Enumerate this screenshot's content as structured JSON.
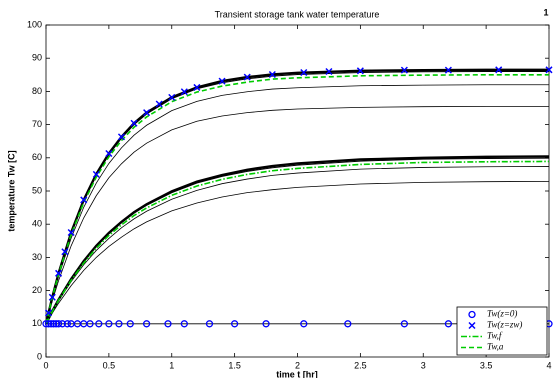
{
  "chart_data": {
    "type": "line",
    "title": "Transient storage tank water temperature",
    "annotation": "1",
    "xlabel": "time t [hr]",
    "ylabel": "temperature Tw [C]",
    "xlim": [
      0,
      4
    ],
    "ylim": [
      0,
      100
    ],
    "xticks": [
      0,
      0.5,
      1,
      1.5,
      2,
      2.5,
      3,
      3.5,
      4
    ],
    "yticks": [
      0,
      10,
      20,
      30,
      40,
      50,
      60,
      70,
      80,
      90,
      100
    ],
    "grid": false,
    "legend": "lower right",
    "x": [
      0,
      0.05,
      0.1,
      0.2,
      0.3,
      0.4,
      0.5,
      0.6,
      0.7,
      0.8,
      1,
      1.2,
      1.4,
      1.6,
      1.8,
      2,
      2.5,
      3,
      3.5,
      4
    ],
    "series": [
      {
        "name": "Tw(z=0)",
        "color": "#0000ff",
        "marker": "o",
        "line_color": "#000000",
        "x": [
          0,
          0.02,
          0.04,
          0.06,
          0.08,
          0.1,
          0.13,
          0.17,
          0.2,
          0.25,
          0.3,
          0.35,
          0.42,
          0.5,
          0.58,
          0.67,
          0.8,
          0.97,
          1.1,
          1.3,
          1.5,
          1.75,
          2.05,
          2.4,
          2.85,
          3.2,
          3.6,
          4
        ],
        "values": [
          10,
          10,
          10,
          10,
          10,
          10,
          10,
          10,
          10,
          10,
          10,
          10,
          10,
          10,
          10,
          10,
          10,
          10,
          10,
          10,
          10,
          10,
          10,
          10,
          10,
          10,
          10,
          10
        ]
      },
      {
        "name": "Tw(z=zw)",
        "color": "#0000ff",
        "marker": "x",
        "x": [
          0.02,
          0.05,
          0.1,
          0.15,
          0.2,
          0.3,
          0.4,
          0.5,
          0.6,
          0.7,
          0.8,
          0.9,
          1,
          1.1,
          1.2,
          1.4,
          1.6,
          1.8,
          2.05,
          2.25,
          2.5,
          2.85,
          3.2,
          3.6,
          4
        ],
        "values": [
          13.3,
          18.0,
          25.2,
          31.7,
          37.5,
          47.3,
          55.0,
          61.3,
          66.3,
          70.4,
          73.6,
          76.2,
          78.2,
          79.9,
          81.2,
          83.1,
          84.3,
          85.1,
          85.7,
          86.0,
          86.2,
          86.4,
          86.4,
          86.5,
          86.5
        ]
      },
      {
        "name": "Tw,f",
        "color": "#00cc00",
        "dash": "dashdot",
        "values": [
          10,
          13.7,
          17.1,
          23.1,
          28.3,
          32.8,
          36.6,
          39.8,
          42.6,
          44.9,
          48.7,
          51.5,
          53.5,
          55.0,
          56.1,
          56.8,
          58.0,
          58.6,
          58.8,
          58.9
        ]
      },
      {
        "name": "Tw,a",
        "color": "#00cc00",
        "dash": "dashed",
        "values": [
          10,
          17.9,
          24.9,
          36.9,
          46.5,
          54.2,
          60.3,
          65.2,
          69.2,
          72.3,
          76.9,
          79.8,
          81.6,
          82.8,
          83.7,
          84.1,
          84.7,
          84.9,
          85,
          85
        ]
      },
      {
        "color": "#000000",
        "width": 2.4,
        "values": [
          10,
          18.0,
          25.2,
          37.5,
          47.3,
          55.1,
          61.3,
          66.3,
          70.4,
          73.6,
          78.2,
          81.2,
          83.1,
          84.3,
          85.1,
          85.6,
          86.2,
          86.4,
          86.5,
          86.5
        ]
      },
      {
        "color": "#000000",
        "width": 1,
        "values": [
          10,
          18.0,
          25.1,
          37.3,
          47.0,
          54.8,
          61.0,
          65.9,
          70.0,
          73.2,
          77.8,
          80.8,
          82.6,
          83.8,
          84.6,
          85.1,
          85.7,
          85.9,
          86,
          86
        ]
      },
      {
        "color": "#000000",
        "width": 0.8,
        "values": [
          10,
          17.6,
          24.3,
          35.8,
          45.1,
          52.4,
          58.3,
          63.0,
          66.8,
          69.8,
          74.2,
          77.0,
          78.8,
          79.9,
          80.7,
          81.1,
          81.7,
          81.9,
          82,
          82
        ]
      },
      {
        "color": "#000000",
        "width": 0.8,
        "values": [
          10,
          16.9,
          23.0,
          33.5,
          41.9,
          48.6,
          54.0,
          58.2,
          61.7,
          64.4,
          68.4,
          71.0,
          72.6,
          73.6,
          74.3,
          74.7,
          75.2,
          75.4,
          75.5,
          75.5
        ]
      },
      {
        "color": "#000000",
        "width": 2.4,
        "values": [
          10,
          13.8,
          17.3,
          23.5,
          28.9,
          33.5,
          37.4,
          40.7,
          43.6,
          46.0,
          49.9,
          52.8,
          54.8,
          56.4,
          57.5,
          58.3,
          59.5,
          60.0,
          60.3,
          60.4
        ]
      },
      {
        "color": "#000000",
        "width": 1,
        "values": [
          10,
          13.8,
          17.3,
          23.4,
          28.7,
          33.3,
          37.1,
          40.4,
          43.3,
          45.7,
          49.5,
          52.4,
          54.4,
          55.9,
          57.0,
          57.8,
          59.0,
          59.6,
          59.8,
          59.9
        ]
      },
      {
        "color": "#000000",
        "width": 0.8,
        "values": [
          10,
          13.6,
          16.9,
          22.7,
          27.8,
          32.1,
          35.7,
          38.9,
          41.6,
          43.9,
          47.5,
          50.2,
          52.2,
          53.6,
          54.7,
          55.4,
          56.6,
          57.1,
          57.3,
          57.4
        ]
      },
      {
        "color": "#000000",
        "width": 0.8,
        "values": [
          10,
          13.2,
          16.2,
          21.5,
          26.1,
          30.0,
          33.3,
          36.1,
          38.6,
          40.7,
          44.0,
          46.4,
          48.2,
          49.5,
          50.4,
          51.1,
          52.1,
          52.6,
          52.8,
          52.9
        ]
      }
    ]
  }
}
